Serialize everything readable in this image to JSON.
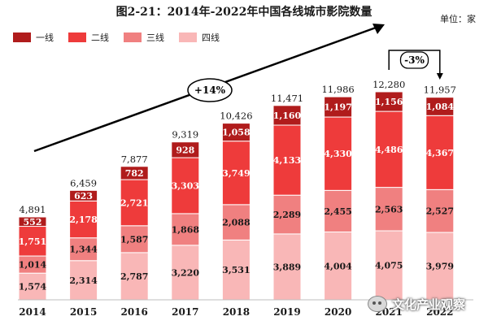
{
  "chart_data": {
    "type": "bar",
    "stacked": true,
    "title": "图2-21：2014年-2022年中国各线城市影院数量",
    "unit": "单位：家",
    "categories": [
      "2014",
      "2015",
      "2016",
      "2017",
      "2018",
      "2019",
      "2020",
      "2021",
      "2022"
    ],
    "series": [
      {
        "name": "四线",
        "color": "#f9b7b7",
        "values": [
          1574,
          2314,
          2787,
          3220,
          3531,
          3889,
          4004,
          4075,
          3979
        ],
        "labels": [
          "1,574",
          "2,314",
          "2,787",
          "3,220",
          "3,531",
          "3,889",
          "4,004",
          "4,075",
          "3,979"
        ]
      },
      {
        "name": "三线",
        "color": "#f08080",
        "values": [
          1014,
          1344,
          1587,
          1868,
          2088,
          2289,
          2455,
          2563,
          2527
        ],
        "labels": [
          "1,014",
          "1,344",
          "1,587",
          "1,868",
          "2,088",
          "2,289",
          "2,455",
          "2,563",
          "2,527"
        ]
      },
      {
        "name": "二线",
        "color": "#ee3b3b",
        "values": [
          1751,
          2178,
          2721,
          3303,
          3749,
          4133,
          4330,
          4486,
          4367
        ],
        "labels": [
          "1,751",
          "2,178",
          "2,721",
          "3,303",
          "3,749",
          "4,133",
          "4,330",
          "4,486",
          "4,367"
        ]
      },
      {
        "name": "一线",
        "color": "#b01c1c",
        "values": [
          552,
          623,
          782,
          928,
          1058,
          1160,
          1197,
          1156,
          1084
        ],
        "labels": [
          "552",
          "623",
          "782",
          "928",
          "1,058",
          "1,160",
          "1,197",
          "1,156",
          "1,084"
        ]
      }
    ],
    "totals": [
      4891,
      6459,
      7877,
      9319,
      10426,
      11471,
      11986,
      12280,
      11957
    ],
    "total_labels": [
      "4,891",
      "6,459",
      "7,877",
      "9,319",
      "10,426",
      "11,471",
      "11,986",
      "12,280",
      "11,957"
    ],
    "legend_order": [
      "一线",
      "二线",
      "三线",
      "四线"
    ],
    "legend_position": "top-left",
    "ylim": [
      0,
      14000
    ],
    "grid": false,
    "annotations": [
      {
        "text": "+14%",
        "type": "growth-arrow"
      },
      {
        "text": "-3%",
        "type": "change-bracket",
        "from": "2021",
        "to": "2022"
      }
    ]
  },
  "watermark": {
    "text": "文化产业观察",
    "icon": "wechat-icon"
  }
}
